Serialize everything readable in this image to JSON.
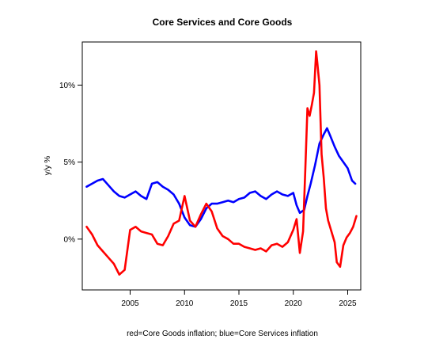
{
  "chart_data": {
    "type": "line",
    "title": "Core Services and Core Goods",
    "xlabel": "red=Core Goods inflation; blue=Core Services inflation",
    "ylabel": "y/y %",
    "xlim": [
      2000.6,
      2026.2
    ],
    "ylim": [
      -3.3,
      12.8
    ],
    "x_ticks": [
      2005,
      2010,
      2015,
      2020,
      2025
    ],
    "y_ticks": [
      {
        "value": 0,
        "label": "0%"
      },
      {
        "value": 5,
        "label": "5%"
      },
      {
        "value": 10,
        "label": "10%"
      }
    ],
    "grid": false,
    "series": [
      {
        "name": "Core Services inflation",
        "color": "#0000ff",
        "x": [
          2001.0,
          2001.5,
          2002.0,
          2002.5,
          2003.0,
          2003.5,
          2004.0,
          2004.5,
          2005.0,
          2005.5,
          2006.0,
          2006.5,
          2007.0,
          2007.5,
          2008.0,
          2008.5,
          2009.0,
          2009.5,
          2010.0,
          2010.5,
          2011.0,
          2011.5,
          2012.0,
          2012.5,
          2013.0,
          2013.5,
          2014.0,
          2014.5,
          2015.0,
          2015.5,
          2016.0,
          2016.5,
          2017.0,
          2017.5,
          2018.0,
          2018.5,
          2019.0,
          2019.5,
          2020.0,
          2020.3,
          2020.6,
          2021.0,
          2021.3,
          2021.6,
          2022.0,
          2022.4,
          2022.8,
          2023.1,
          2023.4,
          2023.8,
          2024.2,
          2024.6,
          2025.0,
          2025.4,
          2025.7
        ],
        "values": [
          3.4,
          3.6,
          3.8,
          3.9,
          3.5,
          3.1,
          2.8,
          2.7,
          2.9,
          3.1,
          2.8,
          2.6,
          3.6,
          3.7,
          3.4,
          3.2,
          2.9,
          2.3,
          1.4,
          0.9,
          0.8,
          1.3,
          2.0,
          2.3,
          2.3,
          2.4,
          2.5,
          2.4,
          2.6,
          2.7,
          3.0,
          3.1,
          2.8,
          2.6,
          2.9,
          3.1,
          2.9,
          2.8,
          3.0,
          2.2,
          1.7,
          1.9,
          2.8,
          3.6,
          4.8,
          6.2,
          6.8,
          7.2,
          6.7,
          6.0,
          5.4,
          5.0,
          4.6,
          3.8,
          3.6
        ]
      },
      {
        "name": "Core Goods inflation",
        "color": "#ff0000",
        "x": [
          2001.0,
          2001.5,
          2002.0,
          2002.5,
          2003.0,
          2003.5,
          2004.0,
          2004.5,
          2005.0,
          2005.5,
          2006.0,
          2006.5,
          2007.0,
          2007.5,
          2008.0,
          2008.5,
          2009.0,
          2009.5,
          2010.0,
          2010.5,
          2011.0,
          2011.5,
          2012.0,
          2012.5,
          2013.0,
          2013.5,
          2014.0,
          2014.5,
          2015.0,
          2015.5,
          2016.0,
          2016.5,
          2017.0,
          2017.5,
          2018.0,
          2018.5,
          2019.0,
          2019.5,
          2020.0,
          2020.3,
          2020.6,
          2020.9,
          2021.1,
          2021.3,
          2021.5,
          2021.7,
          2021.9,
          2022.1,
          2022.2,
          2022.4,
          2022.6,
          2022.8,
          2023.0,
          2023.2,
          2023.5,
          2023.8,
          2024.0,
          2024.3,
          2024.6,
          2024.9,
          2025.2,
          2025.5,
          2025.8
        ],
        "values": [
          0.8,
          0.3,
          -0.4,
          -0.8,
          -1.2,
          -1.6,
          -2.3,
          -2.0,
          0.6,
          0.8,
          0.5,
          0.4,
          0.3,
          -0.3,
          -0.4,
          0.2,
          1.0,
          1.2,
          2.8,
          1.2,
          0.8,
          1.6,
          2.3,
          1.8,
          0.7,
          0.2,
          0.0,
          -0.3,
          -0.3,
          -0.5,
          -0.6,
          -0.7,
          -0.6,
          -0.8,
          -0.4,
          -0.3,
          -0.5,
          -0.2,
          0.6,
          1.3,
          -0.9,
          0.5,
          4.5,
          8.5,
          8.0,
          8.7,
          9.5,
          12.2,
          11.5,
          10.0,
          5.5,
          4.0,
          2.0,
          1.2,
          0.5,
          -0.2,
          -1.5,
          -1.8,
          -0.4,
          0.1,
          0.4,
          0.8,
          1.5
        ]
      }
    ]
  }
}
